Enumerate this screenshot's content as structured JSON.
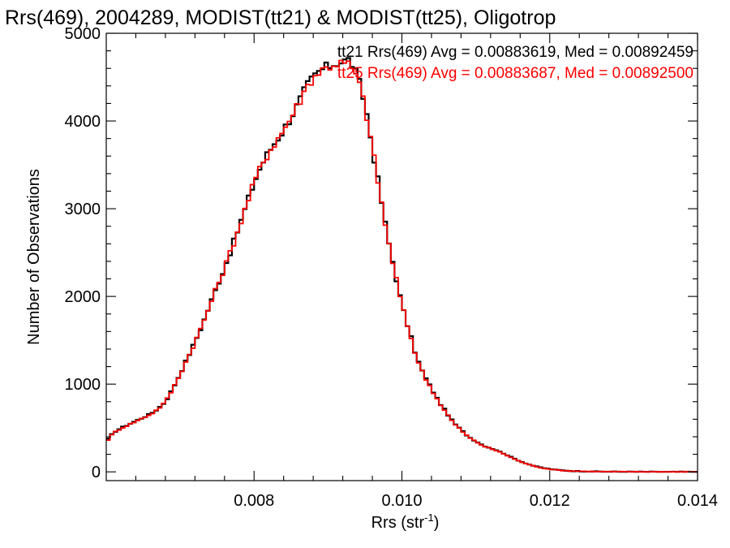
{
  "chart_data": {
    "type": "line",
    "title": "Rrs(469), 2004289, MODIST(tt21) & MODIST(tt25), Oligotrop",
    "xlabel": "Rrs (str",
    "xlabel_sup": "-1",
    "xlabel_close": ")",
    "ylabel": "Number of Observations",
    "xlim": [
      0.006,
      0.014
    ],
    "ylim": [
      -100,
      5000
    ],
    "xticks": [
      0.008,
      0.01,
      0.012,
      0.014
    ],
    "xtick_labels": [
      "0.008",
      "0.010",
      "0.012",
      "0.014"
    ],
    "yticks": [
      0,
      1000,
      2000,
      3000,
      4000,
      5000
    ],
    "ytick_labels": [
      "0",
      "1000",
      "2000",
      "3000",
      "4000",
      "5000"
    ],
    "grid": false,
    "legend": "top-right",
    "bin_width": 5e-05,
    "series": [
      {
        "name": "tt21 Rrs(469) Avg = 0.00883619, Med = 0.00892459",
        "color": "#000000",
        "x": [
          0.006,
          0.0061,
          0.0062,
          0.0063,
          0.0064,
          0.0065,
          0.0066,
          0.0067,
          0.0068,
          0.0069,
          0.007,
          0.0071,
          0.0072,
          0.0073,
          0.0074,
          0.0075,
          0.0076,
          0.0077,
          0.0078,
          0.0079,
          0.008,
          0.0081,
          0.0082,
          0.0083,
          0.0084,
          0.0085,
          0.0086,
          0.0087,
          0.0088,
          0.0089,
          0.009,
          0.0091,
          0.0092,
          0.0093,
          0.0094,
          0.0095,
          0.0096,
          0.0097,
          0.0098,
          0.0099,
          0.01,
          0.0101,
          0.0102,
          0.0103,
          0.0104,
          0.0105,
          0.0106,
          0.0107,
          0.0108,
          0.0109,
          0.011,
          0.0111,
          0.0112,
          0.0113,
          0.0114,
          0.0115,
          0.0116,
          0.0117,
          0.0118,
          0.0119,
          0.012,
          0.0121,
          0.0122,
          0.0123,
          0.0124,
          0.0125,
          0.0126,
          0.0127,
          0.0128,
          0.0129,
          0.013,
          0.0132,
          0.0134,
          0.0136,
          0.0138,
          0.014
        ],
        "y": [
          350,
          450,
          500,
          540,
          580,
          620,
          660,
          720,
          800,
          950,
          1120,
          1300,
          1480,
          1680,
          1900,
          2120,
          2330,
          2560,
          2800,
          3050,
          3300,
          3500,
          3650,
          3780,
          3900,
          4050,
          4200,
          4380,
          4500,
          4580,
          4620,
          4660,
          4680,
          4700,
          4500,
          4200,
          3700,
          3200,
          2700,
          2300,
          1900,
          1600,
          1300,
          1100,
          950,
          800,
          680,
          560,
          480,
          400,
          350,
          300,
          270,
          240,
          200,
          160,
          120,
          90,
          65,
          45,
          32,
          22,
          15,
          10,
          7,
          5,
          4,
          3,
          2,
          2,
          1,
          1,
          0,
          0,
          0,
          0
        ]
      },
      {
        "name": "tt25 Rrs(469) Avg = 0.00883687, Med = 0.00892500",
        "color": "#ff0000",
        "x": [
          0.006,
          0.0061,
          0.0062,
          0.0063,
          0.0064,
          0.0065,
          0.0066,
          0.0067,
          0.0068,
          0.0069,
          0.007,
          0.0071,
          0.0072,
          0.0073,
          0.0074,
          0.0075,
          0.0076,
          0.0077,
          0.0078,
          0.0079,
          0.008,
          0.0081,
          0.0082,
          0.0083,
          0.0084,
          0.0085,
          0.0086,
          0.0087,
          0.0088,
          0.0089,
          0.009,
          0.0091,
          0.0092,
          0.0093,
          0.0094,
          0.0095,
          0.0096,
          0.0097,
          0.0098,
          0.0099,
          0.01,
          0.0101,
          0.0102,
          0.0103,
          0.0104,
          0.0105,
          0.0106,
          0.0107,
          0.0108,
          0.0109,
          0.011,
          0.0111,
          0.0112,
          0.0113,
          0.0114,
          0.0115,
          0.0116,
          0.0117,
          0.0118,
          0.0119,
          0.012,
          0.0121,
          0.0122,
          0.0123,
          0.0124,
          0.0125,
          0.0126,
          0.0127,
          0.0128,
          0.0129,
          0.013,
          0.0132,
          0.0134,
          0.0136,
          0.0138,
          0.014
        ],
        "y": [
          340,
          445,
          495,
          535,
          575,
          615,
          655,
          715,
          795,
          945,
          1115,
          1295,
          1475,
          1675,
          1895,
          2115,
          2325,
          2555,
          2795,
          3045,
          3295,
          3495,
          3645,
          3775,
          3895,
          4045,
          4195,
          4375,
          4495,
          4575,
          4615,
          4650,
          4660,
          4640,
          4480,
          4180,
          3690,
          3190,
          2690,
          2295,
          1895,
          1595,
          1295,
          1095,
          945,
          795,
          675,
          555,
          475,
          395,
          345,
          295,
          265,
          235,
          195,
          155,
          118,
          88,
          63,
          44,
          31,
          21,
          14,
          9,
          7,
          5,
          4,
          3,
          2,
          2,
          1,
          1,
          0,
          0,
          0,
          0
        ]
      }
    ]
  }
}
